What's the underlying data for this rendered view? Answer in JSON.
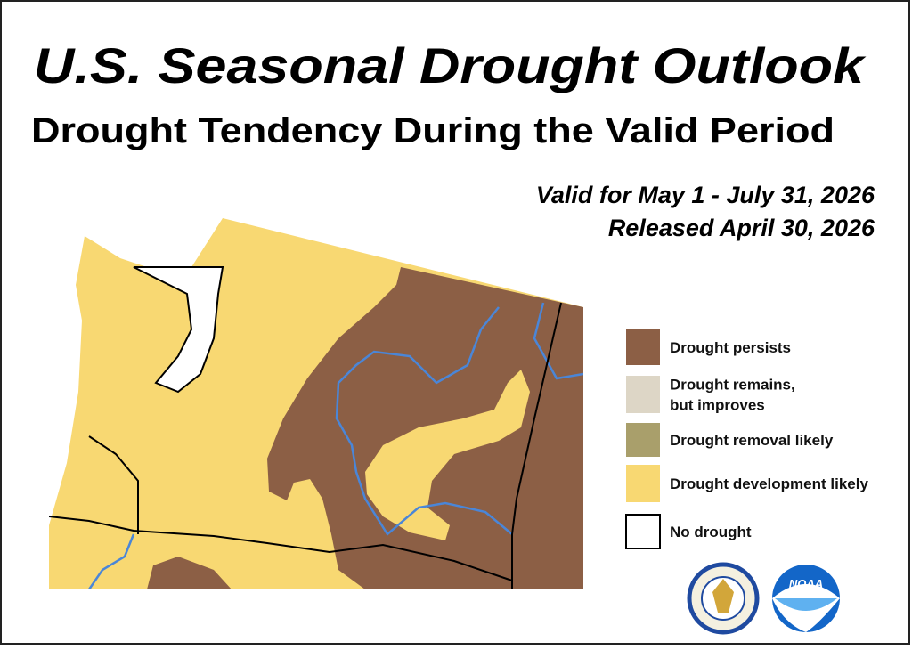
{
  "header": {
    "title": "U.S. Seasonal Drought Outlook",
    "subtitle": "Drought Tendency During the Valid Period",
    "valid": "Valid for May 1 - July 31, 2026",
    "released": "Released April 30, 2026"
  },
  "legend": {
    "items": [
      {
        "lines": [
          "Drought persists"
        ],
        "color": "#8c5f45"
      },
      {
        "lines": [
          "Drought remains,",
          "but improves"
        ],
        "color": "#ddd6c6"
      },
      {
        "lines": [
          "Drought removal likely"
        ],
        "color": "#a99f6b"
      },
      {
        "lines": [
          "Drought development likely"
        ],
        "color": "#f8d872"
      },
      {
        "lines": [
          "No drought"
        ],
        "color": "#ffffff"
      }
    ]
  },
  "logos": {
    "noaa": "NOAA"
  }
}
